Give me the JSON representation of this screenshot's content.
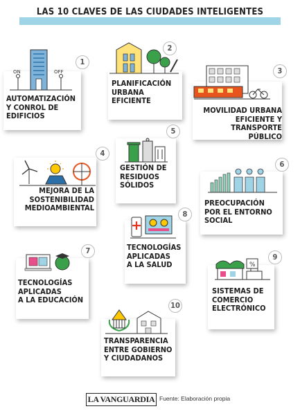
{
  "title": "LAS 10 CLAVES DE LAS CIUDADES INTELIGENTES",
  "accent_color": "#9fd3e6",
  "keys": [
    {
      "number": "1",
      "label": "AUTOMATIZACIÓN\nY CONROL DE\nEDIFICIOS",
      "icon": "building-onoff-icon",
      "on": "ON",
      "off": "OFF"
    },
    {
      "number": "2",
      "label": "PLANIFICACIÓN\nURBANA\nEFICIENTE",
      "icon": "city-planning-icon"
    },
    {
      "number": "3",
      "label": "MOVILIDAD URBANA\nEFICIENTE Y\nTRANSPORTE PÚBLICO",
      "icon": "tram-bike-icon"
    },
    {
      "number": "4",
      "label": "MEJORA DE LA\nSOSTENIBILIDAD\nMEDIOAMBIENTAL",
      "icon": "renewable-energy-icon"
    },
    {
      "number": "5",
      "label": "GESTIÓN DE\nRESIDUOS\nSÓLIDOS",
      "icon": "waste-bins-icon"
    },
    {
      "number": "6",
      "label": "PREOCUPACIÓN\nPOR EL ENTORNO\nSOCIAL",
      "icon": "people-city-icon"
    },
    {
      "number": "7",
      "label": "TECNOLOGÍAS\nAPLICADAS\nA LA EDUCACIÓN",
      "icon": "education-tech-icon"
    },
    {
      "number": "8",
      "label": "TECNOLOGÍAS\nAPLICADAS\nA LA SALUD",
      "icon": "health-tech-icon"
    },
    {
      "number": "9",
      "label": "SISTEMAS DE\nCOMERCIO\nELECTRÓNICO",
      "icon": "ecommerce-icon"
    },
    {
      "number": "10",
      "label": "TRANSPARENCIA\nENTRE GOBIERNO\nY CIUDADANOS",
      "icon": "government-icon"
    }
  ],
  "footer": {
    "logo": "LA VANGUARDIA",
    "source": "Fuente: Elaboración propia"
  }
}
